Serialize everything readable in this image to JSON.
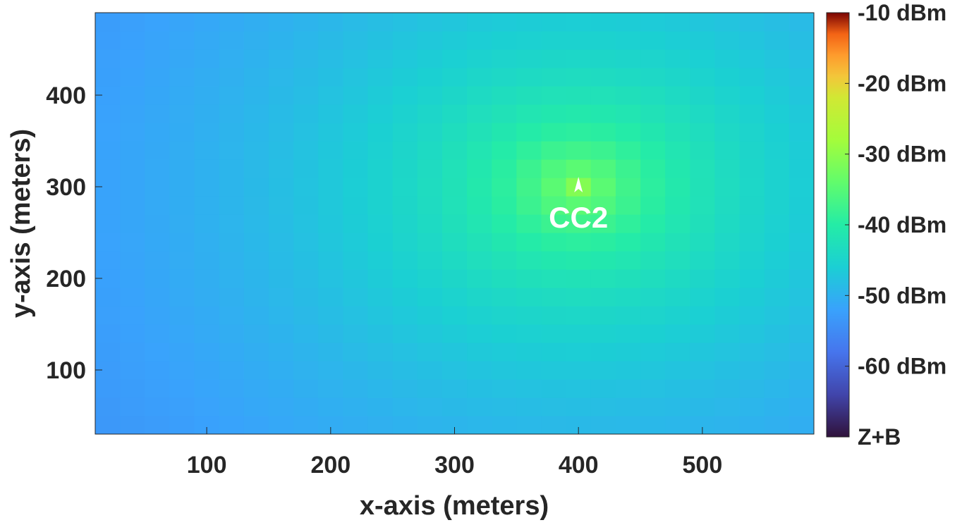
{
  "chart_data": {
    "type": "heatmap",
    "title": "",
    "xlabel": "x-axis (meters)",
    "ylabel": "y-axis (meters)",
    "xlim": [
      10,
      590
    ],
    "ylim": [
      30,
      490
    ],
    "xticks": [
      100,
      200,
      300,
      400,
      500
    ],
    "yticks": [
      100,
      200,
      300,
      400
    ],
    "cell_size_x": 20,
    "cell_size_y": 20,
    "grid": false,
    "colorbar": {
      "range": [
        -70,
        -10
      ],
      "ticks": [
        {
          "value": -10,
          "label": "-10 dBm"
        },
        {
          "value": -20,
          "label": "-20 dBm"
        },
        {
          "value": -30,
          "label": "-30 dBm"
        },
        {
          "value": -40,
          "label": "-40 dBm"
        },
        {
          "value": -50,
          "label": "-50 dBm"
        },
        {
          "value": -60,
          "label": "-60 dBm"
        },
        {
          "value": -70,
          "label": "Z+B"
        }
      ]
    },
    "source": {
      "label": "CC2",
      "x": 400,
      "y": 300,
      "peak_dbm": -31,
      "colormap": "turbo"
    }
  }
}
